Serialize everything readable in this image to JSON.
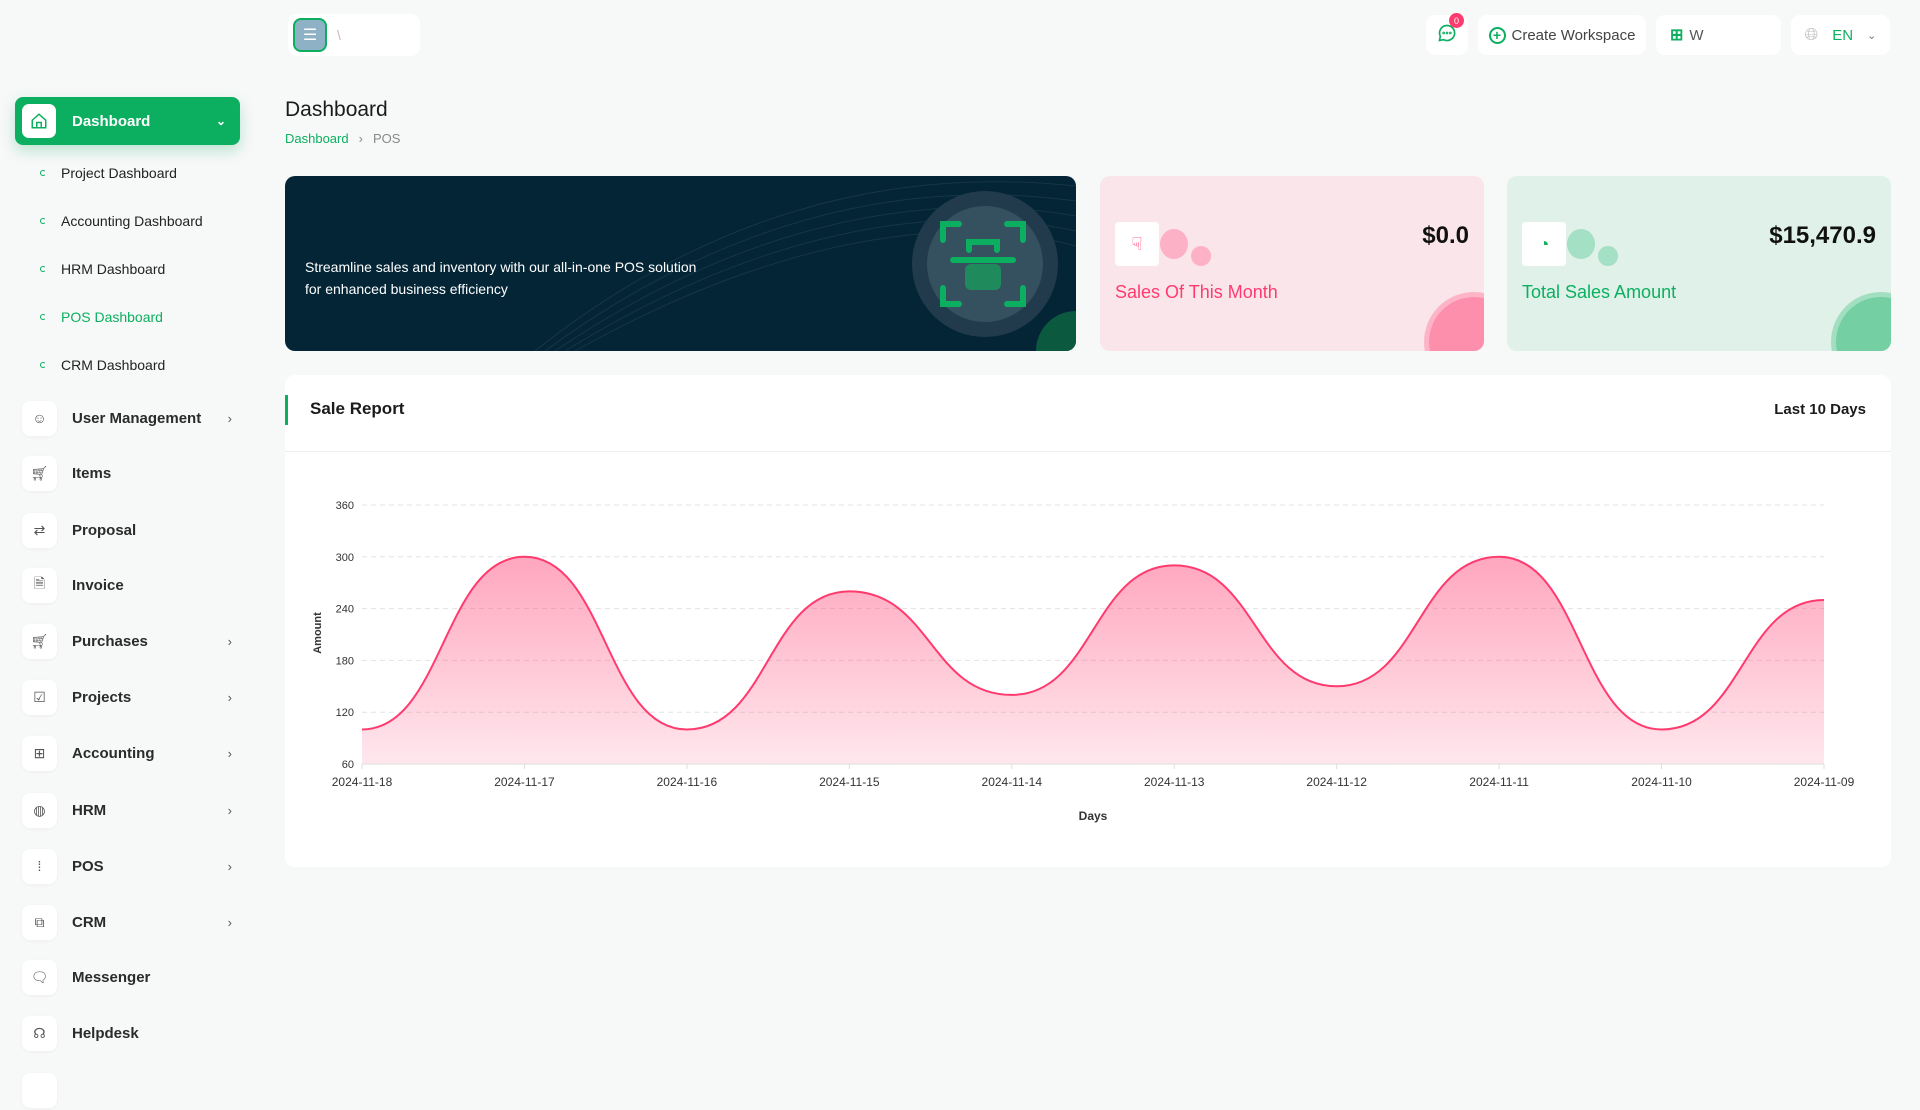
{
  "header": {
    "logo_text": "\\",
    "create_workspace": "Create Workspace",
    "workspace_label": "W",
    "language": "EN",
    "notification_count": "0"
  },
  "sidebar": {
    "dashboard": "Dashboard",
    "submenu": [
      {
        "label": "Project Dashboard"
      },
      {
        "label": "Accounting Dashboard"
      },
      {
        "label": "HRM Dashboard"
      },
      {
        "label": "POS Dashboard",
        "active": true
      },
      {
        "label": "CRM Dashboard"
      }
    ],
    "items": [
      {
        "label": "User Management",
        "icon": "users-icon",
        "has_children": true
      },
      {
        "label": "Items",
        "icon": "cart-icon",
        "has_children": false
      },
      {
        "label": "Proposal",
        "icon": "proposal-icon",
        "has_children": false
      },
      {
        "label": "Invoice",
        "icon": "invoice-icon",
        "has_children": false
      },
      {
        "label": "Purchases",
        "icon": "cart-icon",
        "has_children": true
      },
      {
        "label": "Projects",
        "icon": "checkbox-icon",
        "has_children": true
      },
      {
        "label": "Accounting",
        "icon": "apps-icon",
        "has_children": true
      },
      {
        "label": "HRM",
        "icon": "hrm-icon",
        "has_children": true
      },
      {
        "label": "POS",
        "icon": "grid-dots-icon",
        "has_children": true
      },
      {
        "label": "CRM",
        "icon": "crm-icon",
        "has_children": true
      },
      {
        "label": "Messenger",
        "icon": "message-icon",
        "has_children": false
      },
      {
        "label": "Helpdesk",
        "icon": "headset-icon",
        "has_children": false
      }
    ]
  },
  "page": {
    "title": "Dashboard",
    "breadcrumb": [
      "Dashboard",
      "POS"
    ]
  },
  "banner": {
    "text_line1": "Streamline sales and inventory with our all-in-one POS solution",
    "text_line2": "for enhanced business efficiency"
  },
  "stats": [
    {
      "value": "$0.0",
      "label": "Sales Of This Month",
      "color": "#ff3a6e",
      "bg": "#fae6ea"
    },
    {
      "value": "$15,470.9",
      "label": "Total Sales Amount",
      "color": "#0caf60",
      "bg": "#dff1e8"
    }
  ],
  "report": {
    "title": "Sale Report",
    "range": "Last 10 Days"
  },
  "chart_data": {
    "type": "area",
    "categories": [
      "2024-11-18",
      "2024-11-17",
      "2024-11-16",
      "2024-11-15",
      "2024-11-14",
      "2024-11-13",
      "2024-11-12",
      "2024-11-11",
      "2024-11-10",
      "2024-11-09"
    ],
    "values": [
      100,
      300,
      100,
      260,
      140,
      290,
      150,
      300,
      100,
      250
    ],
    "xlabel": "Days",
    "ylabel": "Amount",
    "ylim": [
      60,
      360
    ],
    "yticks": [
      60,
      120,
      180,
      240,
      300,
      360
    ],
    "grid": true,
    "color": "#ff3a6e"
  }
}
